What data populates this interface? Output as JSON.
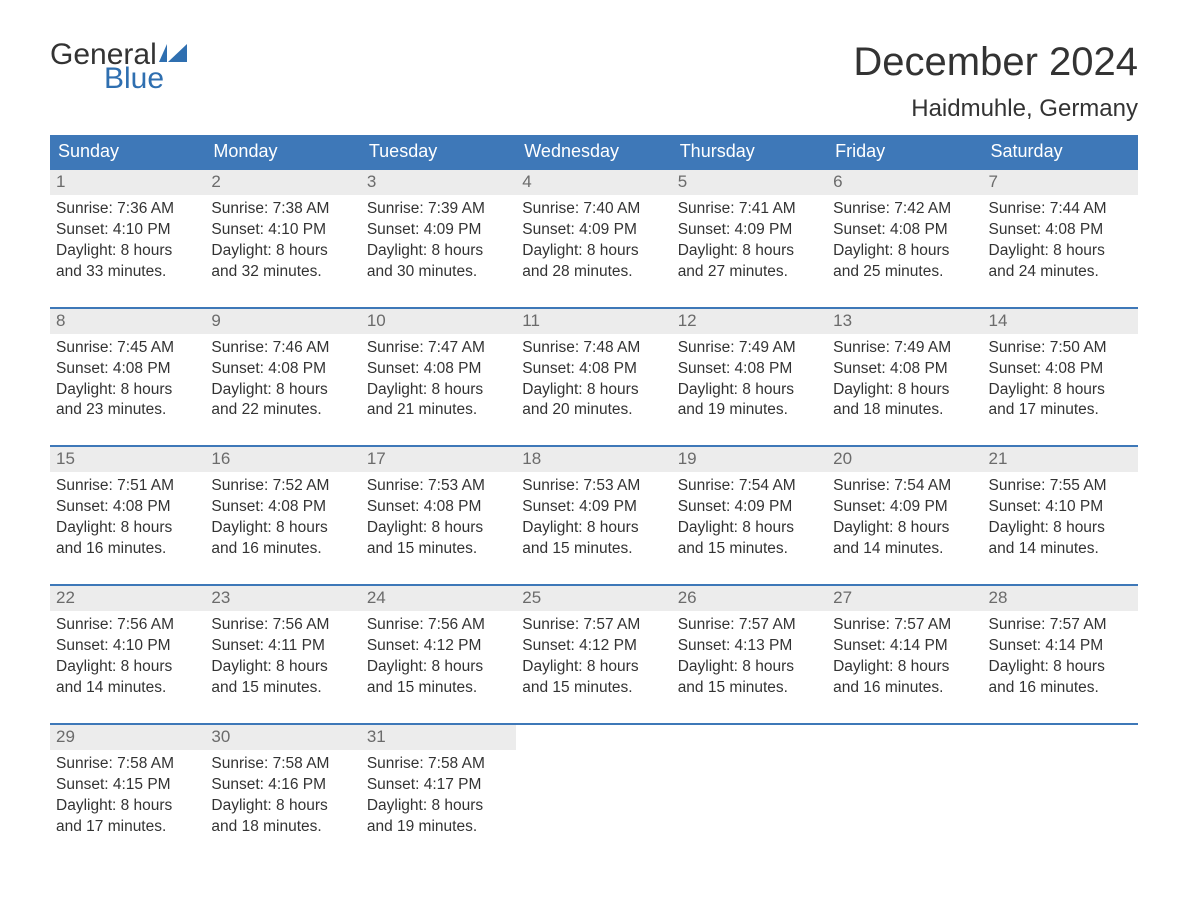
{
  "logo": {
    "word1": "General",
    "word2": "Blue"
  },
  "title": "December 2024",
  "location": "Haidmuhle, Germany",
  "colors": {
    "header_bg": "#3e78b8",
    "header_text": "#ffffff",
    "daynum_bg": "#ececec",
    "daynum_text": "#6b6b6b",
    "body_text": "#333333",
    "border": "#3e78b8",
    "logo_blue": "#2f6fb0",
    "page_bg": "#ffffff"
  },
  "fonts": {
    "title_size_pt": 30,
    "location_size_pt": 18,
    "weekday_size_pt": 14,
    "daynum_size_pt": 13,
    "body_size_pt": 12
  },
  "weekdays": [
    "Sunday",
    "Monday",
    "Tuesday",
    "Wednesday",
    "Thursday",
    "Friday",
    "Saturday"
  ],
  "weeks": [
    [
      {
        "n": "1",
        "sunrise": "Sunrise: 7:36 AM",
        "sunset": "Sunset: 4:10 PM",
        "d1": "Daylight: 8 hours",
        "d2": "and 33 minutes."
      },
      {
        "n": "2",
        "sunrise": "Sunrise: 7:38 AM",
        "sunset": "Sunset: 4:10 PM",
        "d1": "Daylight: 8 hours",
        "d2": "and 32 minutes."
      },
      {
        "n": "3",
        "sunrise": "Sunrise: 7:39 AM",
        "sunset": "Sunset: 4:09 PM",
        "d1": "Daylight: 8 hours",
        "d2": "and 30 minutes."
      },
      {
        "n": "4",
        "sunrise": "Sunrise: 7:40 AM",
        "sunset": "Sunset: 4:09 PM",
        "d1": "Daylight: 8 hours",
        "d2": "and 28 minutes."
      },
      {
        "n": "5",
        "sunrise": "Sunrise: 7:41 AM",
        "sunset": "Sunset: 4:09 PM",
        "d1": "Daylight: 8 hours",
        "d2": "and 27 minutes."
      },
      {
        "n": "6",
        "sunrise": "Sunrise: 7:42 AM",
        "sunset": "Sunset: 4:08 PM",
        "d1": "Daylight: 8 hours",
        "d2": "and 25 minutes."
      },
      {
        "n": "7",
        "sunrise": "Sunrise: 7:44 AM",
        "sunset": "Sunset: 4:08 PM",
        "d1": "Daylight: 8 hours",
        "d2": "and 24 minutes."
      }
    ],
    [
      {
        "n": "8",
        "sunrise": "Sunrise: 7:45 AM",
        "sunset": "Sunset: 4:08 PM",
        "d1": "Daylight: 8 hours",
        "d2": "and 23 minutes."
      },
      {
        "n": "9",
        "sunrise": "Sunrise: 7:46 AM",
        "sunset": "Sunset: 4:08 PM",
        "d1": "Daylight: 8 hours",
        "d2": "and 22 minutes."
      },
      {
        "n": "10",
        "sunrise": "Sunrise: 7:47 AM",
        "sunset": "Sunset: 4:08 PM",
        "d1": "Daylight: 8 hours",
        "d2": "and 21 minutes."
      },
      {
        "n": "11",
        "sunrise": "Sunrise: 7:48 AM",
        "sunset": "Sunset: 4:08 PM",
        "d1": "Daylight: 8 hours",
        "d2": "and 20 minutes."
      },
      {
        "n": "12",
        "sunrise": "Sunrise: 7:49 AM",
        "sunset": "Sunset: 4:08 PM",
        "d1": "Daylight: 8 hours",
        "d2": "and 19 minutes."
      },
      {
        "n": "13",
        "sunrise": "Sunrise: 7:49 AM",
        "sunset": "Sunset: 4:08 PM",
        "d1": "Daylight: 8 hours",
        "d2": "and 18 minutes."
      },
      {
        "n": "14",
        "sunrise": "Sunrise: 7:50 AM",
        "sunset": "Sunset: 4:08 PM",
        "d1": "Daylight: 8 hours",
        "d2": "and 17 minutes."
      }
    ],
    [
      {
        "n": "15",
        "sunrise": "Sunrise: 7:51 AM",
        "sunset": "Sunset: 4:08 PM",
        "d1": "Daylight: 8 hours",
        "d2": "and 16 minutes."
      },
      {
        "n": "16",
        "sunrise": "Sunrise: 7:52 AM",
        "sunset": "Sunset: 4:08 PM",
        "d1": "Daylight: 8 hours",
        "d2": "and 16 minutes."
      },
      {
        "n": "17",
        "sunrise": "Sunrise: 7:53 AM",
        "sunset": "Sunset: 4:08 PM",
        "d1": "Daylight: 8 hours",
        "d2": "and 15 minutes."
      },
      {
        "n": "18",
        "sunrise": "Sunrise: 7:53 AM",
        "sunset": "Sunset: 4:09 PM",
        "d1": "Daylight: 8 hours",
        "d2": "and 15 minutes."
      },
      {
        "n": "19",
        "sunrise": "Sunrise: 7:54 AM",
        "sunset": "Sunset: 4:09 PM",
        "d1": "Daylight: 8 hours",
        "d2": "and 15 minutes."
      },
      {
        "n": "20",
        "sunrise": "Sunrise: 7:54 AM",
        "sunset": "Sunset: 4:09 PM",
        "d1": "Daylight: 8 hours",
        "d2": "and 14 minutes."
      },
      {
        "n": "21",
        "sunrise": "Sunrise: 7:55 AM",
        "sunset": "Sunset: 4:10 PM",
        "d1": "Daylight: 8 hours",
        "d2": "and 14 minutes."
      }
    ],
    [
      {
        "n": "22",
        "sunrise": "Sunrise: 7:56 AM",
        "sunset": "Sunset: 4:10 PM",
        "d1": "Daylight: 8 hours",
        "d2": "and 14 minutes."
      },
      {
        "n": "23",
        "sunrise": "Sunrise: 7:56 AM",
        "sunset": "Sunset: 4:11 PM",
        "d1": "Daylight: 8 hours",
        "d2": "and 15 minutes."
      },
      {
        "n": "24",
        "sunrise": "Sunrise: 7:56 AM",
        "sunset": "Sunset: 4:12 PM",
        "d1": "Daylight: 8 hours",
        "d2": "and 15 minutes."
      },
      {
        "n": "25",
        "sunrise": "Sunrise: 7:57 AM",
        "sunset": "Sunset: 4:12 PM",
        "d1": "Daylight: 8 hours",
        "d2": "and 15 minutes."
      },
      {
        "n": "26",
        "sunrise": "Sunrise: 7:57 AM",
        "sunset": "Sunset: 4:13 PM",
        "d1": "Daylight: 8 hours",
        "d2": "and 15 minutes."
      },
      {
        "n": "27",
        "sunrise": "Sunrise: 7:57 AM",
        "sunset": "Sunset: 4:14 PM",
        "d1": "Daylight: 8 hours",
        "d2": "and 16 minutes."
      },
      {
        "n": "28",
        "sunrise": "Sunrise: 7:57 AM",
        "sunset": "Sunset: 4:14 PM",
        "d1": "Daylight: 8 hours",
        "d2": "and 16 minutes."
      }
    ],
    [
      {
        "n": "29",
        "sunrise": "Sunrise: 7:58 AM",
        "sunset": "Sunset: 4:15 PM",
        "d1": "Daylight: 8 hours",
        "d2": "and 17 minutes."
      },
      {
        "n": "30",
        "sunrise": "Sunrise: 7:58 AM",
        "sunset": "Sunset: 4:16 PM",
        "d1": "Daylight: 8 hours",
        "d2": "and 18 minutes."
      },
      {
        "n": "31",
        "sunrise": "Sunrise: 7:58 AM",
        "sunset": "Sunset: 4:17 PM",
        "d1": "Daylight: 8 hours",
        "d2": "and 19 minutes."
      },
      null,
      null,
      null,
      null
    ]
  ]
}
